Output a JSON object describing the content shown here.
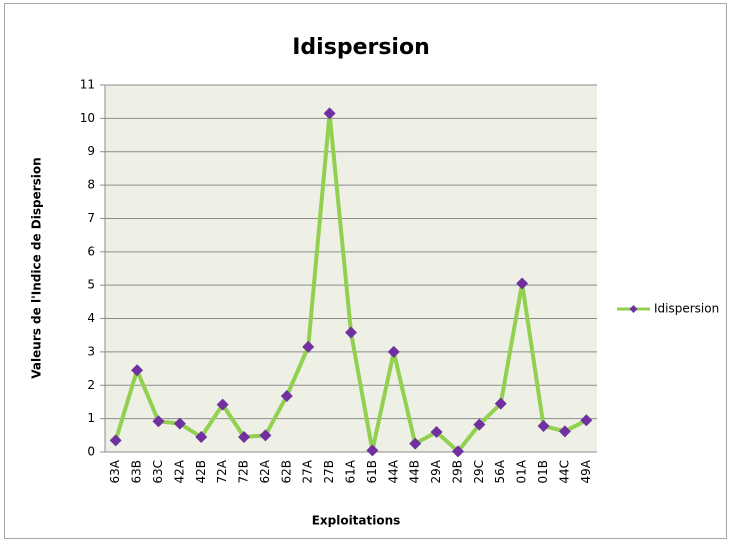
{
  "chart_data": {
    "type": "line",
    "title": "Idispersion",
    "xlabel": "Exploitations",
    "ylabel": "Valeurs de l'Indice de Dispersion",
    "categories": [
      "63A",
      "63B",
      "63C",
      "42A",
      "42B",
      "72A",
      "72B",
      "62A",
      "62B",
      "27A",
      "27B",
      "61A",
      "61B",
      "44A",
      "44B",
      "29A",
      "29B",
      "29C",
      "56A",
      "01A",
      "01B",
      "44C",
      "49A"
    ],
    "series": [
      {
        "name": "Idispersion",
        "color": "#92d050",
        "marker_color": "#7030a0",
        "values": [
          0.35,
          2.45,
          0.92,
          0.85,
          0.45,
          1.42,
          0.45,
          0.5,
          1.68,
          3.15,
          10.15,
          3.58,
          0.05,
          3.0,
          0.25,
          0.6,
          0.02,
          0.82,
          1.45,
          5.05,
          0.78,
          0.62,
          0.95
        ]
      }
    ],
    "ylim": [
      0,
      11
    ],
    "yticks": [
      0,
      1,
      2,
      3,
      4,
      5,
      6,
      7,
      8,
      9,
      10,
      11
    ],
    "grid": true,
    "legend": "right"
  }
}
